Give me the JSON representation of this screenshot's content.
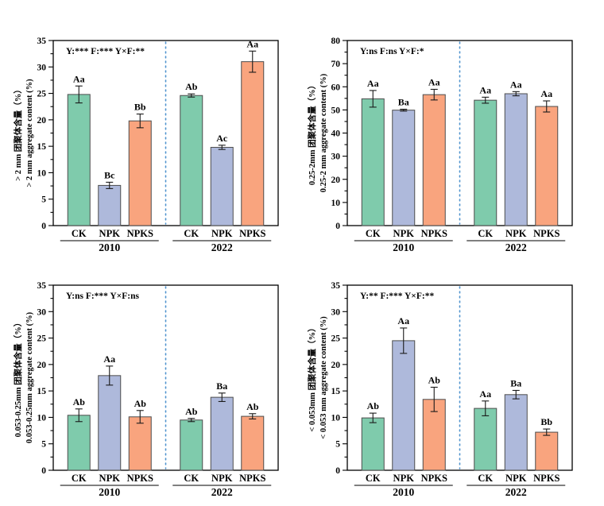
{
  "figure": {
    "treatments": [
      "CK",
      "NPK",
      "NPKS"
    ],
    "years": [
      "2010",
      "2022"
    ]
  },
  "colors": {
    "CK": "#7FCBAC",
    "NPK": "#AEB9DB",
    "NPKS": "#F9A47E",
    "bar_edge": "#4d4d4d",
    "error_bar": "#1a1a1a",
    "divider": "#4f93ce",
    "axis": "#000000",
    "group_line": "#333333"
  },
  "chart_data": [
    {
      "type": "bar",
      "key": "gt-2mm",
      "position": "top-left",
      "ylabel_zh": "> 2 mm 团聚体含量（%）",
      "ylabel_en": "> 2 mm aggregate content (%)",
      "stats_annotation": "Y:***  F:***  Y×F:**",
      "ylim": [
        0,
        35
      ],
      "ytick_major": 5,
      "grid": false,
      "categories": [
        "CK",
        "NPK",
        "NPKS"
      ],
      "series": [
        {
          "year": "2010",
          "values": [
            24.8,
            7.6,
            19.8
          ],
          "errors": [
            1.6,
            0.6,
            1.3
          ],
          "letters": [
            "Aa",
            "Bc",
            "Bb"
          ]
        },
        {
          "year": "2022",
          "values": [
            24.6,
            14.8,
            31.0
          ],
          "errors": [
            0.3,
            0.4,
            2.0
          ],
          "letters": [
            "Ab",
            "Ac",
            "Aa"
          ]
        }
      ]
    },
    {
      "type": "bar",
      "key": "0.25-2mm",
      "position": "top-right",
      "ylabel_zh": "0.25-2mm 团聚体含量（%）",
      "ylabel_en": "0.25-2 mm  aggregate content (%)",
      "stats_annotation": "Y:ns  F:ns  Y×F:*",
      "ylim": [
        0,
        80
      ],
      "ytick_major": 10,
      "grid": false,
      "categories": [
        "CK",
        "NPK",
        "NPKS"
      ],
      "series": [
        {
          "year": "2010",
          "values": [
            54.8,
            49.9,
            56.6
          ],
          "errors": [
            3.6,
            0.4,
            2.3
          ],
          "letters": [
            "Aa",
            "Ba",
            "Aa"
          ]
        },
        {
          "year": "2022",
          "values": [
            54.2,
            57.0,
            51.5
          ],
          "errors": [
            1.3,
            0.9,
            2.4
          ],
          "letters": [
            "Aa",
            "Aa",
            "Aa"
          ]
        }
      ]
    },
    {
      "type": "bar",
      "key": "0.053-0.25mm",
      "position": "bottom-left",
      "ylabel_zh": "0.053-0.25mm 团聚体含量（%）",
      "ylabel_en": "0.053-0.25mm  aggregate content (%)",
      "stats_annotation": "Y:ns  F:***  Y×F:ns",
      "ylim": [
        0,
        35
      ],
      "ytick_major": 5,
      "grid": false,
      "categories": [
        "CK",
        "NPK",
        "NPKS"
      ],
      "series": [
        {
          "year": "2010",
          "values": [
            10.4,
            17.9,
            10.1
          ],
          "errors": [
            1.2,
            1.8,
            1.2
          ],
          "letters": [
            "Ab",
            "Aa",
            "Ab"
          ]
        },
        {
          "year": "2022",
          "values": [
            9.5,
            13.8,
            10.2
          ],
          "errors": [
            0.3,
            0.8,
            0.5
          ],
          "letters": [
            "Ab",
            "Ba",
            "Ab"
          ]
        }
      ]
    },
    {
      "type": "bar",
      "key": "lt-0.053mm",
      "position": "bottom-right",
      "ylabel_zh": "< 0.053mm 团聚体含量（%）",
      "ylabel_en": "< 0.053 mm  aggregate content (%)",
      "stats_annotation": "Y:**  F:***  Y×F:**",
      "ylim": [
        0,
        35
      ],
      "ytick_major": 5,
      "grid": false,
      "categories": [
        "CK",
        "NPK",
        "NPKS"
      ],
      "series": [
        {
          "year": "2010",
          "values": [
            9.9,
            24.5,
            13.4
          ],
          "errors": [
            0.9,
            2.4,
            2.3
          ],
          "letters": [
            "Ab",
            "Aa",
            "Ab"
          ]
        },
        {
          "year": "2022",
          "values": [
            11.7,
            14.3,
            7.2
          ],
          "errors": [
            1.4,
            0.8,
            0.6
          ],
          "letters": [
            "Aa",
            "Ba",
            "Bb"
          ]
        }
      ]
    }
  ]
}
